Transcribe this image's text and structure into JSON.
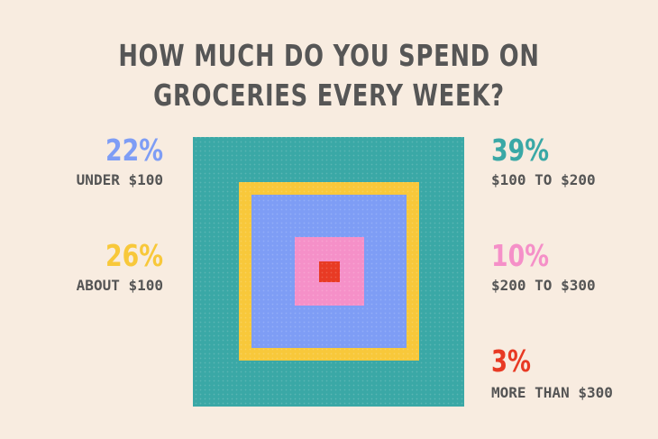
{
  "title_lines": [
    "HOW MUCH DO YOU SPEND ON",
    "GROCERIES EVERY WEEK?"
  ],
  "chart_data": {
    "type": "nested-square",
    "title": "HOW MUCH DO YOU SPEND ON GROCERIES EVERY WEEK?",
    "categories": [
      "UNDER $100",
      "ABOUT $100",
      "$100 TO $200",
      "$200 TO $300",
      "MORE THAN $300"
    ],
    "values": [
      22,
      26,
      39,
      10,
      3
    ],
    "labels": [
      "22%",
      "26%",
      "39%",
      "10%",
      "3%"
    ],
    "colors": [
      "#7e9df5",
      "#f8c83a",
      "#3aa8a6",
      "#f590c8",
      "#e83a24"
    ]
  }
}
